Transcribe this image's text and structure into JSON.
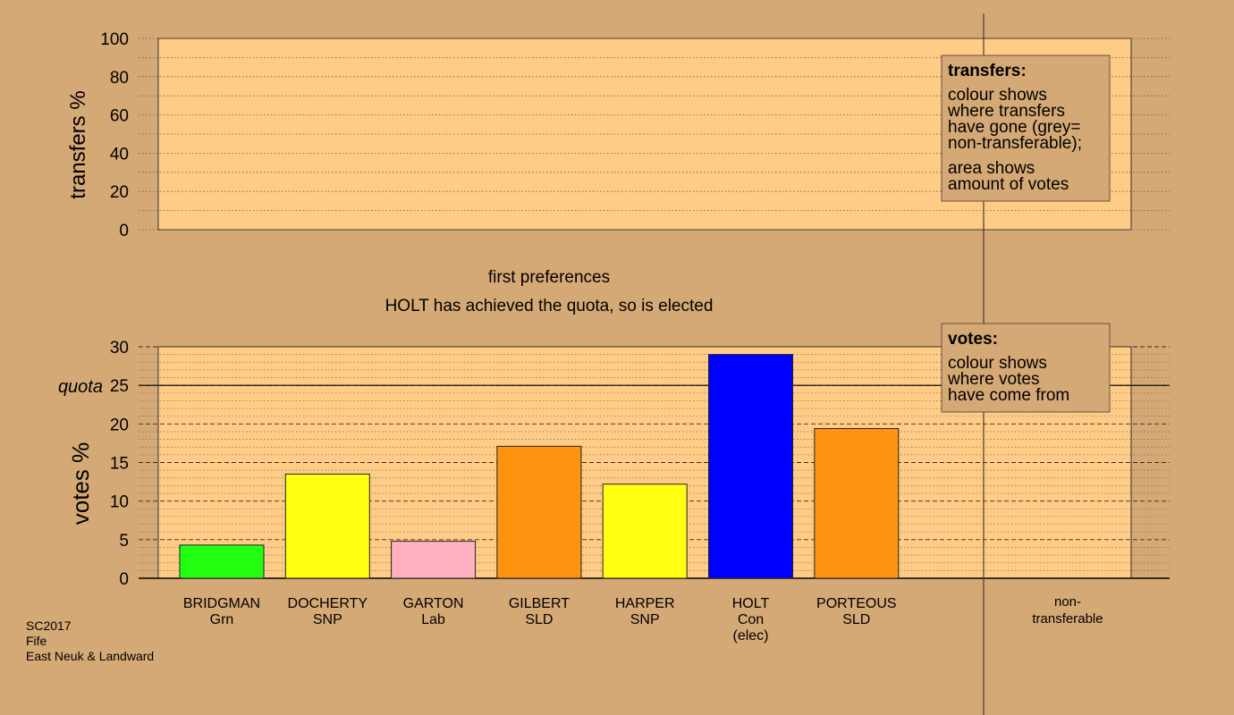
{
  "background": "#d5a975",
  "plot_fill": "#ffcc88",
  "footer": [
    "SC2017",
    "Fife",
    "East Neuk & Landward"
  ],
  "heading": {
    "line1": "first preferences",
    "line2": "HOLT has achieved the quota, so is elected"
  },
  "legend_transfers": {
    "title": "transfers:",
    "lines_a": [
      "colour shows",
      "where transfers",
      "have gone (grey=",
      "non-transferable);"
    ],
    "lines_b": [
      "area shows",
      "amount of votes"
    ]
  },
  "legend_votes": {
    "title": "votes:",
    "lines": [
      "colour shows",
      "where votes",
      "have come from"
    ]
  },
  "chart_data": [
    {
      "type": "bar",
      "ylabel": "transfers %",
      "ylim": [
        0,
        100
      ],
      "yticks": [
        0,
        20,
        40,
        60,
        80,
        100
      ],
      "values": []
    },
    {
      "type": "bar",
      "ylabel": "votes %",
      "ylim": [
        0,
        30
      ],
      "yticks": [
        0,
        5,
        10,
        15,
        20,
        25,
        30
      ],
      "quota": 25,
      "quota_label": "quota",
      "categories": [
        {
          "name": "BRIDGMAN",
          "party": "Grn"
        },
        {
          "name": "DOCHERTY",
          "party": "SNP"
        },
        {
          "name": "GARTON",
          "party": "Lab"
        },
        {
          "name": "GILBERT",
          "party": "SLD"
        },
        {
          "name": "HARPER",
          "party": "SNP"
        },
        {
          "name": "HOLT",
          "party": "Con",
          "note": "(elec)"
        },
        {
          "name": "PORTEOUS",
          "party": "SLD"
        }
      ],
      "values": [
        4.3,
        13.5,
        4.8,
        17.1,
        12.2,
        29.0,
        19.4
      ],
      "colors": [
        "#22ff11",
        "#ffff11",
        "#ffb0c0",
        "#ff9410",
        "#ffff11",
        "#0000ff",
        "#ff9410"
      ],
      "extra_category": "non-transferable"
    }
  ]
}
